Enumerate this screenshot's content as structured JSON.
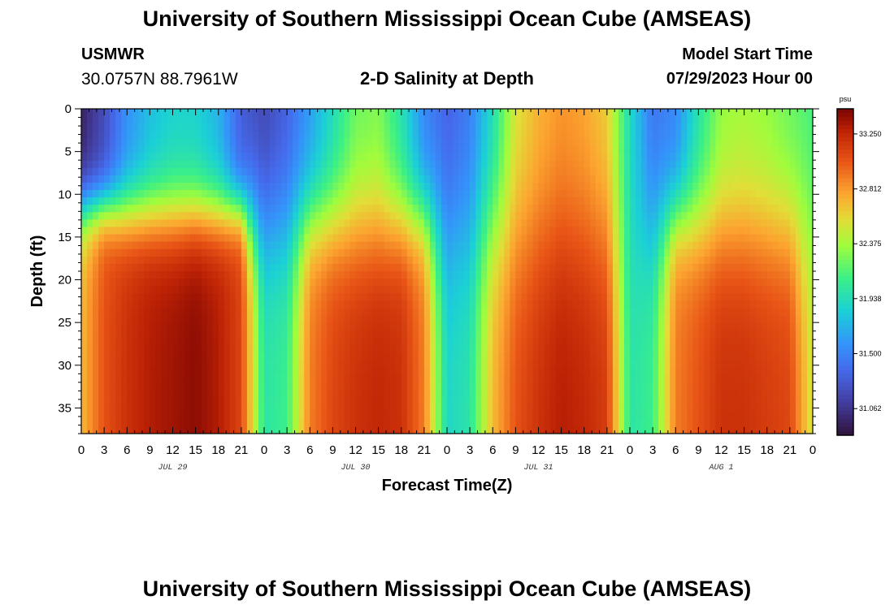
{
  "header": {
    "title": "University of Southern Mississippi Ocean Cube (AMSEAS)",
    "station": "USMWR",
    "coords": "30.0757N  88.7961W",
    "subtitle": "2-D Salinity at Depth",
    "model_start_label": "Model Start Time",
    "model_start_value": "07/29/2023 Hour 00"
  },
  "footer": {
    "title": "University of Southern Mississippi Ocean Cube (AMSEAS)"
  },
  "colors": {
    "background": "#ffffff",
    "frame": "#000000"
  },
  "chart_data": {
    "type": "heatmap",
    "title": "2-D Salinity at Depth",
    "xlabel": "Forecast Time(Z)",
    "ylabel": "Depth (ft)",
    "x_range_hours": [
      0,
      96
    ],
    "y_range_ft": [
      0,
      38
    ],
    "x_tick_labels": [
      "0",
      "3",
      "6",
      "9",
      "12",
      "15",
      "18",
      "21",
      "0",
      "3",
      "6",
      "9",
      "12",
      "15",
      "18",
      "21",
      "0",
      "3",
      "6",
      "9",
      "12",
      "15",
      "18",
      "21",
      "0",
      "3",
      "6",
      "9",
      "12",
      "15",
      "18",
      "21",
      "0"
    ],
    "y_ticks": [
      0,
      5,
      10,
      15,
      20,
      25,
      30,
      35
    ],
    "date_labels": [
      {
        "label": "JUL 29",
        "hour": 12
      },
      {
        "label": "JUL 30",
        "hour": 36
      },
      {
        "label": "JUL 31",
        "hour": 60
      },
      {
        "label": "AUG 1",
        "hour": 84
      }
    ],
    "colorbar": {
      "unit": "psu",
      "min": 30.85,
      "max": 33.45,
      "tick_values": [
        33.25,
        32.812,
        32.375,
        31.938,
        31.5,
        31.062
      ],
      "tick_labels": [
        "33.250",
        "32.812",
        "32.375",
        "31.938",
        "31.500",
        "31.062"
      ]
    },
    "series": [
      {
        "name": "salinity_surface_0ft_psu",
        "hours": [
          0,
          3,
          6,
          9,
          12,
          15,
          18,
          21,
          24,
          27,
          30,
          33,
          36,
          39,
          42,
          45,
          48,
          51,
          54,
          57,
          60,
          63,
          66,
          69,
          72,
          75,
          78,
          81,
          84,
          87,
          90,
          93,
          96
        ],
        "values": [
          30.95,
          31.2,
          31.55,
          31.75,
          31.85,
          31.85,
          31.7,
          31.3,
          31.15,
          31.3,
          31.6,
          31.9,
          32.2,
          32.25,
          31.95,
          31.5,
          31.3,
          31.45,
          31.9,
          32.5,
          32.7,
          32.8,
          32.75,
          32.6,
          31.9,
          31.4,
          31.5,
          31.95,
          32.3,
          32.35,
          32.3,
          32.2,
          32.1
        ]
      },
      {
        "name": "salinity_bottom_37ft_psu",
        "hours": [
          0,
          3,
          6,
          9,
          12,
          15,
          18,
          21,
          24,
          27,
          30,
          33,
          36,
          39,
          42,
          45,
          48,
          51,
          54,
          57,
          60,
          63,
          66,
          69,
          72,
          75,
          78,
          81,
          84,
          87,
          90,
          93,
          96
        ],
        "values": [
          32.7,
          33.05,
          33.2,
          33.3,
          33.35,
          33.4,
          33.3,
          33.1,
          32.0,
          32.1,
          32.9,
          33.1,
          33.2,
          33.25,
          33.2,
          32.9,
          31.9,
          32.0,
          32.7,
          33.05,
          33.2,
          33.3,
          33.25,
          33.15,
          32.0,
          32.1,
          32.9,
          33.05,
          33.2,
          33.2,
          33.15,
          33.1,
          32.5
        ]
      }
    ]
  }
}
